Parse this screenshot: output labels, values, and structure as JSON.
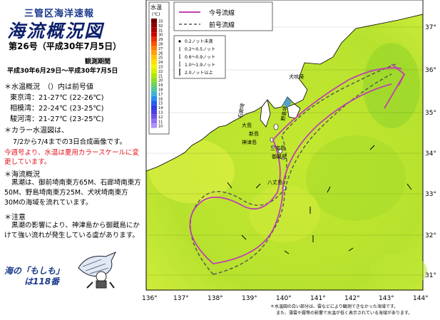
{
  "header": {
    "agency": "三管区海洋速報",
    "title": "海流概況図",
    "issue": "第26号（平成30年7月5日）",
    "observation_label": "観測期間",
    "observation_period": "平成30年6月29日〜平成30年7月5日"
  },
  "water_temp": {
    "title": "＊水温概況　（）内は前号値",
    "rows": [
      {
        "label": "東京湾：21-27℃ (22-26℃)"
      },
      {
        "label": "相模湾：22-24℃ (23-25℃)"
      },
      {
        "label": "駿河湾：21-27℃ (23-25℃)"
      }
    ]
  },
  "color_image": {
    "title": "＊カラー水温図は、",
    "desc": "7/2から7/4までの3日合成画像です。",
    "red_note": "今週号より、水温は夏用カラースケールに変更しています。"
  },
  "current": {
    "title": "＊海流概況",
    "desc": "黒潮は、御前埼南東方65M、石廊埼南東方50M、野島埼南東方25M、犬吠埼南東方30Mの海域を流れています。"
  },
  "caution": {
    "title": "＊注意",
    "desc": "黒潮の影響により、神津島から御蔵島にかけて強い流れが発生している虞があります。"
  },
  "mascot": {
    "line1": "海の「もしも」",
    "line2": "は118番"
  },
  "map": {
    "colorbar_title": "水温",
    "colorbar_unit": "(℃)",
    "colorbar_ticks": [
      "33",
      "32",
      "31",
      "30",
      "29",
      "28",
      "27",
      "26",
      "25",
      "24",
      "23",
      "22",
      "21",
      "20",
      "19",
      "18",
      "17",
      "16",
      "15",
      "14",
      "13",
      "12",
      "11",
      "10"
    ],
    "colorbar_colors": [
      "#6e0000",
      "#8b0000",
      "#b00000",
      "#d00000",
      "#e83000",
      "#ff5000",
      "#ff7f00",
      "#ffa000",
      "#ffc400",
      "#ffe000",
      "#f5f500",
      "#d7f000",
      "#b0e600",
      "#8fdc28",
      "#6fd25a",
      "#4fc89a",
      "#3ab4d8",
      "#2a8ef0",
      "#2060f0",
      "#3040e0",
      "#5040e0",
      "#7050e8",
      "#9070f0",
      "#b090f8"
    ],
    "lat_labels": [
      "37°",
      "36°",
      "35°",
      "34°",
      "33°",
      "32°",
      "31°"
    ],
    "lon_labels": [
      "136°",
      "137°",
      "138°",
      "139°",
      "140°",
      "141°",
      "142°",
      "143°",
      "144°"
    ],
    "legend_current": "今号流線",
    "legend_previous": "前号流線",
    "current_color": "#c040b0",
    "previous_color": "#555555",
    "speed_scale": [
      {
        "label": "0.2ノット未満"
      },
      {
        "label": "0.2〜0.5ノット"
      },
      {
        "label": "0.6〜0.9ノット"
      },
      {
        "label": "1.0〜1.9ノット"
      },
      {
        "label": "2.0ノット以上"
      }
    ],
    "place_labels": [
      "大島",
      "新島",
      "神津島",
      "三宅島",
      "御蔵島",
      "八丈島",
      "石廊埼",
      "野島埼",
      "犬吠埼"
    ],
    "footnote1": "＊水温図の白い部分は、雲などにより観測できなかった海域です。",
    "footnote2": "また、薄雲や霧等の影響で水温が低く表示されている海域があります。"
  }
}
